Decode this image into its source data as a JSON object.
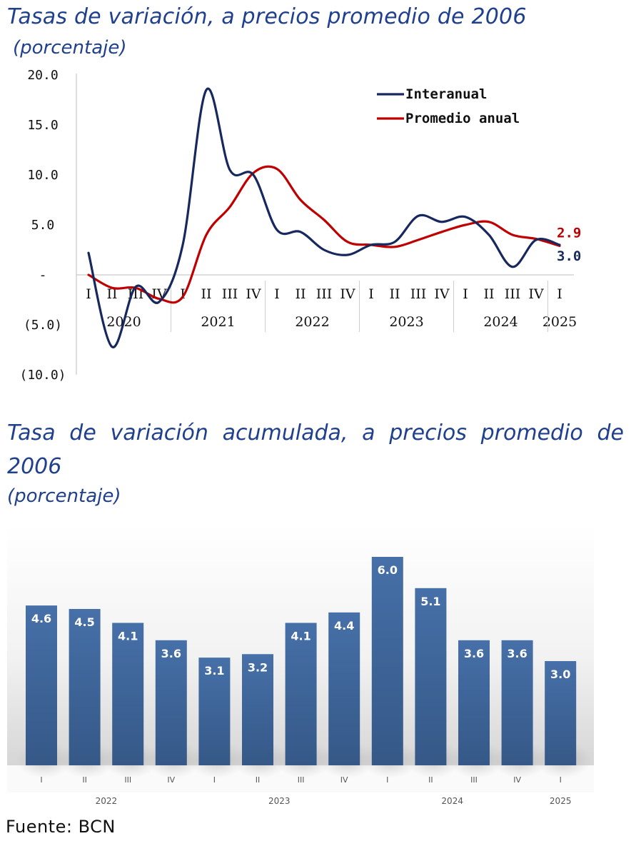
{
  "titles": {
    "chart1_title": "Tasas de variación, a precios promedio de 2006",
    "chart1_subtitle": "(porcentaje)",
    "chart2_title_line1": "Tasa de variación acumulada, a precios promedio de",
    "chart2_title_line2": "2006",
    "chart2_subtitle": "(porcentaje)",
    "source": "Fuente: BCN"
  },
  "colors": {
    "interanual": "#16285e",
    "promedio": "#c00000",
    "bar": "#3d6298",
    "title": "#1f3f8f"
  },
  "chart_data": [
    {
      "type": "line",
      "title": "Tasas de variación, a precios promedio de 2006",
      "subtitle": "(porcentaje)",
      "ylim": [
        -10,
        20
      ],
      "yticks": [
        20,
        15,
        10,
        5,
        0,
        -5,
        -10
      ],
      "ytick_labels": [
        "20.0",
        "15.0",
        "10.0",
        "5.0",
        "-",
        "(5.0)",
        "(10.0)"
      ],
      "quarters": [
        "I",
        "II",
        "III",
        "IV",
        "I",
        "II",
        "III",
        "IV",
        "I",
        "II",
        "III",
        "IV",
        "I",
        "II",
        "III",
        "IV",
        "I",
        "II",
        "III",
        "IV",
        "I"
      ],
      "years": [
        "2020",
        "2021",
        "2022",
        "2023",
        "2024",
        "2025"
      ],
      "legend_position": "top-right",
      "series": [
        {
          "name": "Interanual",
          "color": "#16285e",
          "values": [
            2.2,
            -7.2,
            -1.2,
            -2.7,
            3.0,
            18.5,
            10.5,
            10.0,
            4.5,
            4.3,
            2.5,
            2.0,
            3.0,
            3.3,
            5.9,
            5.3,
            5.8,
            4.0,
            0.8,
            3.5,
            3.0
          ],
          "end_label": "3.0"
        },
        {
          "name": "Promedio anual",
          "color": "#c00000",
          "values": [
            0.0,
            -1.3,
            -1.3,
            -2.4,
            -2.2,
            4.0,
            6.8,
            10.2,
            10.6,
            7.5,
            5.5,
            3.3,
            3.0,
            2.8,
            3.5,
            4.3,
            5.0,
            5.3,
            4.0,
            3.6,
            2.9
          ],
          "end_label": "2.9"
        }
      ]
    },
    {
      "type": "bar",
      "title": "Tasa de variación acumulada, a precios promedio de 2006",
      "subtitle": "(porcentaje)",
      "categories": [
        "I",
        "II",
        "III",
        "IV",
        "I",
        "II",
        "III",
        "IV",
        "I",
        "II",
        "III",
        "IV",
        "I"
      ],
      "years": [
        {
          "label": "2022",
          "span": [
            0,
            3
          ]
        },
        {
          "label": "2023",
          "span": [
            4,
            7
          ]
        },
        {
          "label": "2024",
          "span": [
            8,
            11
          ]
        },
        {
          "label": "2025",
          "span": [
            12,
            12
          ]
        }
      ],
      "values": [
        4.6,
        4.5,
        4.1,
        3.6,
        3.1,
        3.2,
        4.1,
        4.4,
        6.0,
        5.1,
        3.6,
        3.6,
        3.0
      ],
      "value_labels": [
        "4.6",
        "4.5",
        "4.1",
        "3.6",
        "3.1",
        "3.2",
        "4.1",
        "4.4",
        "6.0",
        "5.1",
        "3.6",
        "3.6",
        "3.0"
      ],
      "ylim": [
        0,
        6.0
      ]
    }
  ]
}
